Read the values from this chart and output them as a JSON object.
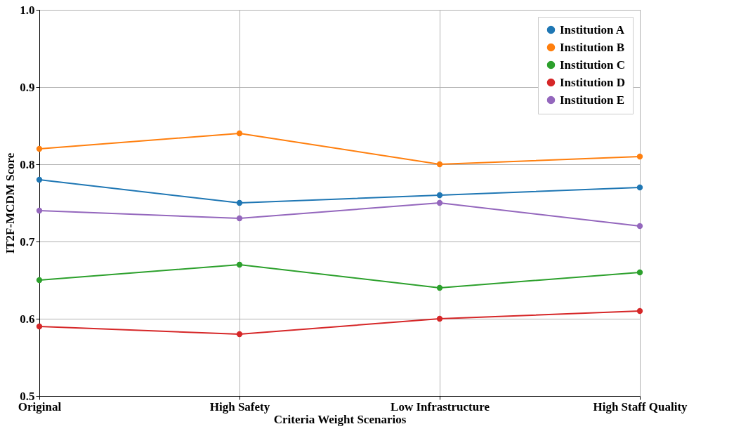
{
  "chart_data": {
    "type": "line",
    "xlabel": "Criteria Weight Scenarios",
    "ylabel": "IT2F-MCDM Score",
    "categories": [
      "Original",
      "High Safety",
      "Low Infrastructure",
      "High Staff Quality"
    ],
    "series": [
      {
        "name": "Institution A",
        "color": "#1f77b4",
        "values": [
          0.78,
          0.75,
          0.76,
          0.77
        ]
      },
      {
        "name": "Institution B",
        "color": "#ff7f0e",
        "values": [
          0.82,
          0.84,
          0.8,
          0.81
        ]
      },
      {
        "name": "Institution C",
        "color": "#2ca02c",
        "values": [
          0.65,
          0.67,
          0.64,
          0.66
        ]
      },
      {
        "name": "Institution D",
        "color": "#d62728",
        "values": [
          0.59,
          0.58,
          0.6,
          0.61
        ]
      },
      {
        "name": "Institution E",
        "color": "#9467bd",
        "values": [
          0.74,
          0.73,
          0.75,
          0.72
        ]
      }
    ],
    "ylim": [
      0.5,
      1.0
    ],
    "yticks": [
      0.5,
      0.6,
      0.7,
      0.8,
      0.9,
      {
        "value": 1.0,
        "label": "1.0"
      }
    ],
    "grid": true,
    "legend": "top right",
    "marker": "circle",
    "line_style": "solid"
  }
}
